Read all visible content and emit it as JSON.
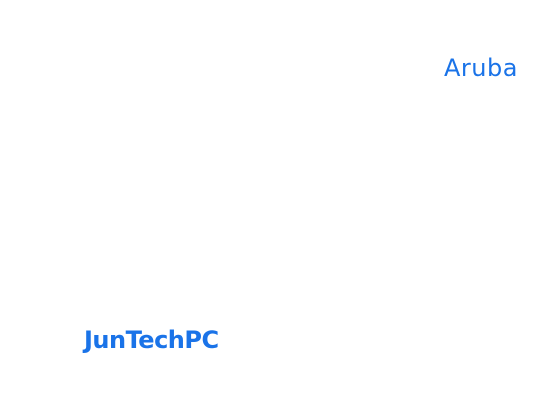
{
  "labels": {
    "aruba": "Aruba",
    "juntechpc": "JunTechPC"
  },
  "colors": {
    "background": "#ffffff",
    "text_accent": "#1a73e8"
  }
}
